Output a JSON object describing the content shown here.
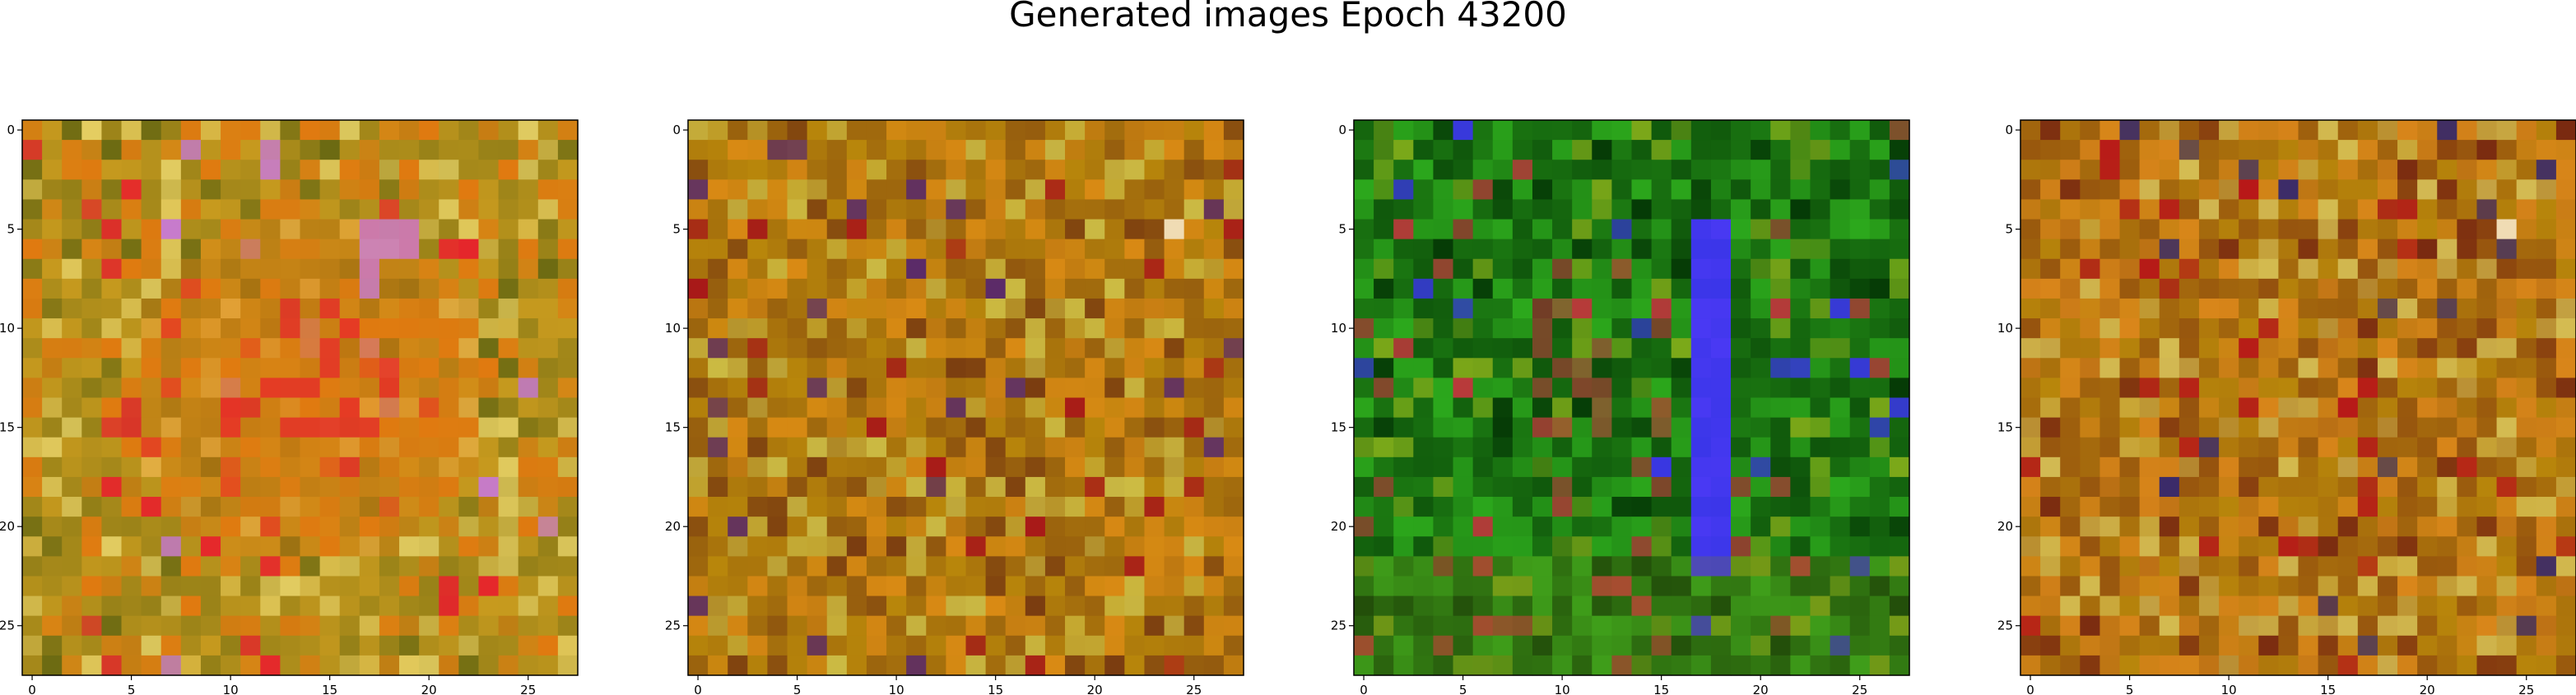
{
  "title": "Generated images Epoch 43200",
  "chart_data": [
    {
      "type": "heatmap",
      "xticks": [
        0,
        5,
        10,
        15,
        20,
        25
      ],
      "yticks": [
        0,
        5,
        10,
        15,
        20,
        25
      ],
      "grid": false,
      "size": 28,
      "palette": {
        "base": "#c79a1e",
        "dark": "#6b6a12",
        "warm": "#e07a10",
        "accent": "#e8d46a",
        "hot": "#e8202c",
        "cool": "#c77ad0"
      }
    },
    {
      "type": "heatmap",
      "xticks": [
        0,
        5,
        10,
        15,
        20,
        25
      ],
      "yticks": [
        0,
        5,
        10,
        15,
        20,
        25
      ],
      "grid": false,
      "size": 28,
      "palette": {
        "base": "#b8860b",
        "dark": "#7a3c10",
        "warm": "#d98a14",
        "accent": "#cfc24a",
        "hot": "#a81818",
        "cool": "#5a2a6a"
      }
    },
    {
      "type": "heatmap",
      "xticks": [
        0,
        5,
        10,
        15,
        20,
        25
      ],
      "yticks": [
        0,
        5,
        10,
        15,
        20,
        25
      ],
      "grid": false,
      "size": 28,
      "palette": {
        "base": "#1c7a12",
        "dark": "#053a06",
        "warm": "#2ca81c",
        "accent": "#88b01a",
        "hot": "#b83a3a",
        "cool": "#3a36e8"
      }
    },
    {
      "type": "heatmap",
      "xticks": [
        0,
        5,
        10,
        15,
        20,
        25
      ],
      "yticks": [
        0,
        5,
        10,
        15,
        20,
        25
      ],
      "grid": false,
      "size": 28,
      "palette": {
        "base": "#b8860b",
        "dark": "#7a2a10",
        "warm": "#d9861a",
        "accent": "#d8c35a",
        "hot": "#b81818",
        "cool": "#3a2a6a"
      }
    }
  ]
}
